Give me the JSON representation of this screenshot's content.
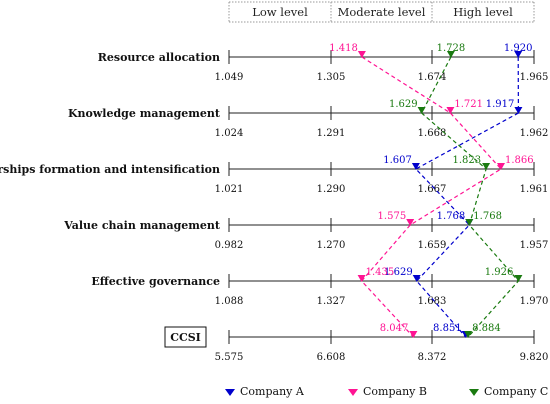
{
  "chart_data": {
    "type": "line",
    "level_headers": [
      "Low level",
      "Moderate level",
      "High level"
    ],
    "rows": [
      {
        "label": "Resource allocation",
        "ticks": [
          "1.049",
          "1.305",
          "1.674",
          "1.965"
        ],
        "tick_values": [
          1.049,
          1.305,
          1.674,
          1.965
        ],
        "points": {
          "a": 1.92,
          "b": 1.418,
          "c": 1.728
        },
        "point_labels": {
          "a": "1.920",
          "b": "1.418",
          "c": "1.728"
        }
      },
      {
        "label": "Knowledge management",
        "ticks": [
          "1.024",
          "1.291",
          "1.668",
          "1.962"
        ],
        "tick_values": [
          1.024,
          1.291,
          1.668,
          1.962
        ],
        "points": {
          "a": 1.917,
          "b": 1.721,
          "c": 1.629
        },
        "point_labels": {
          "a": "1.917",
          "b": "1.721",
          "c": "1.629"
        }
      },
      {
        "label": "Partnerships formation and intensification",
        "ticks": [
          "1.021",
          "1.290",
          "1.667",
          "1.961"
        ],
        "tick_values": [
          1.021,
          1.29,
          1.667,
          1.961
        ],
        "points": {
          "a": 1.607,
          "b": 1.866,
          "c": 1.823
        },
        "point_labels": {
          "a": "1.607",
          "b": "1.866",
          "c": "1.823"
        }
      },
      {
        "label": "Value chain management",
        "ticks": [
          "0.982",
          "1.270",
          "1.659",
          "1.957"
        ],
        "tick_values": [
          0.982,
          1.27,
          1.659,
          1.957
        ],
        "points": {
          "a": 1.768,
          "b": 1.575,
          "c": 1.768
        },
        "point_labels": {
          "a": "1.768",
          "b": "1.575",
          "c": "1.768"
        }
      },
      {
        "label": "Effective governance",
        "ticks": [
          "1.088",
          "1.327",
          "1.683",
          "1.970"
        ],
        "tick_values": [
          1.088,
          1.327,
          1.683,
          1.97
        ],
        "points": {
          "a": 1.629,
          "b": 1.435,
          "c": 1.926
        },
        "point_labels": {
          "a": "1.629",
          "b": "1.435",
          "c": "1.926"
        }
      },
      {
        "label": "CCSI",
        "boxed": true,
        "ticks": [
          "5.575",
          "6.608",
          "8.372",
          "9.820"
        ],
        "tick_values": [
          5.575,
          6.608,
          8.372,
          9.82
        ],
        "points": {
          "a": 8.851,
          "b": 8.047,
          "c": 8.884
        },
        "point_labels": {
          "a": "8.851",
          "b": "8.047",
          "c": "8.884"
        }
      }
    ],
    "series": [
      {
        "key": "a",
        "name": "Company A",
        "color": "#0000cc"
      },
      {
        "key": "b",
        "name": "Company B",
        "color": "#ff1493"
      },
      {
        "key": "c",
        "name": "Company C",
        "color": "#1a7a10"
      }
    ]
  }
}
